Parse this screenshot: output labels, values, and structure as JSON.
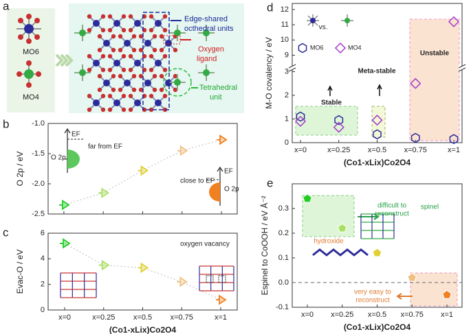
{
  "panel_a": {
    "letter": "a",
    "mo6": "MO6",
    "mo4": "MO4",
    "edge_label": [
      "Edge-shared",
      "octhedral units"
    ],
    "oxygen_label": [
      "Oxygen",
      "ligand"
    ],
    "tetra_label": [
      "Tetrahedral",
      "unit"
    ]
  },
  "chart_data": [
    {
      "type": "line",
      "letter": "b",
      "ylabel": "O 2p / eV",
      "x": [
        0,
        0.25,
        0.5,
        0.75,
        1
      ],
      "xlim": [
        -0.1,
        1.1
      ],
      "series": [
        {
          "values": [
            -2.35,
            -2.15,
            -1.78,
            -1.45,
            -1.27
          ],
          "colors": [
            "#22cc22",
            "#a8e060",
            "#e0d030",
            "#f0c080",
            "#f08020"
          ]
        }
      ],
      "ylim": [
        -2.5,
        -1.0
      ],
      "yticks": [
        {
          "value": -2.5,
          "label": "-2.5"
        },
        {
          "value": -2.0,
          "label": "-2.0"
        },
        {
          "value": -1.5,
          "label": "-1.5"
        },
        {
          "value": -1.0,
          "label": "-1.0"
        }
      ],
      "annotations": [
        "EF",
        "far from EF",
        "O 2p",
        "EF",
        "close to EF",
        "O 2p"
      ]
    },
    {
      "type": "line",
      "letter": "c",
      "ylabel": "Evac-O / eV",
      "xlabel": "(Co1-xLix)Co2O4",
      "categories": [
        "x=0",
        "x=0.25",
        "x=0.5",
        "x=0.75",
        "x=1"
      ],
      "series": [
        {
          "values": [
            5.2,
            3.5,
            3.3,
            2.2,
            0.8
          ],
          "colors": [
            "#22cc22",
            "#a8e060",
            "#e0d030",
            "#f0c080",
            "#f08020"
          ]
        }
      ],
      "ylim": [
        0,
        6
      ],
      "yticks": [
        0,
        2,
        4,
        6
      ],
      "annotations": [
        "oxygen vacancy"
      ]
    },
    {
      "type": "scatter",
      "letter": "d",
      "ylabel": "M-O covalency / eV",
      "xlabel": "(Co1-xLix)Co2O4",
      "categories": [
        "x=0",
        "x=0.25",
        "x=0.5",
        "x=0.75",
        "x=1"
      ],
      "series": [
        {
          "name": "MO6",
          "color": "#2b2b9b",
          "marker": "hexagon",
          "values": [
            1.1,
            0.95,
            0.35,
            0.2,
            0.15
          ]
        },
        {
          "name": "MO4",
          "color": "#a43cc8",
          "marker": "diamond",
          "values": [
            0.9,
            0.65,
            0.95,
            2.5,
            11.2
          ]
        }
      ],
      "ylim": [
        0,
        12.4
      ],
      "ybreak": [
        3.1,
        8.3
      ],
      "yticks": [
        0,
        1,
        2,
        3,
        9,
        10,
        11,
        12
      ],
      "annotations": [
        "vs.",
        "Stable",
        "Meta-stable",
        "Unstable"
      ]
    },
    {
      "type": "scatter",
      "letter": "e",
      "ylabel": "Espinel to CoOOH / eV Å⁻²",
      "xlabel": "(Co1-xLix)Co2O4",
      "categories": [
        "x=0",
        "x=0.25",
        "x=0.5",
        "x=0.75",
        "x=1"
      ],
      "series": [
        {
          "marker": "pentagon",
          "values": [
            0.34,
            0.22,
            0.12,
            0.02,
            -0.05
          ],
          "colors": [
            "#22cc22",
            "#a8e060",
            "#e0d030",
            "#f0c080",
            "#f08020"
          ]
        }
      ],
      "ylim": [
        -0.1,
        0.4
      ],
      "yticks": [
        {
          "value": -0.1,
          "label": "-0.1"
        },
        {
          "value": 0,
          "label": "0.0"
        },
        {
          "value": 0.1,
          "label": "0.1"
        },
        {
          "value": 0.2,
          "label": "0.2"
        },
        {
          "value": 0.3,
          "label": "0.3"
        }
      ],
      "hline": 0,
      "annotations": [
        "difficult to",
        "reconstruct",
        "spinel",
        "hydroxide",
        "very easy to",
        "reconstruct"
      ]
    }
  ]
}
